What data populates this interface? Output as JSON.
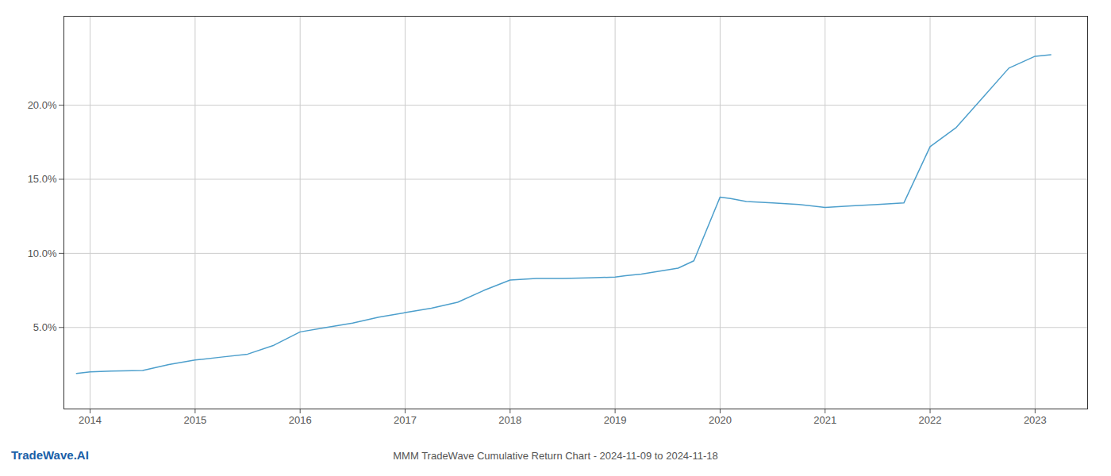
{
  "chart_data": {
    "type": "line",
    "title": "MMM TradeWave Cumulative Return Chart - 2024-11-09 to 2024-11-18",
    "annotations": [
      {
        "text": "TradeWave.AI",
        "color": "#1a5fa8"
      }
    ],
    "color": "#4d9fcc",
    "x": [
      2013.87,
      2014.0,
      2014.2,
      2014.5,
      2014.75,
      2015.0,
      2015.25,
      2015.5,
      2015.75,
      2016.0,
      2016.25,
      2016.5,
      2016.75,
      2017.0,
      2017.25,
      2017.5,
      2017.75,
      2018.0,
      2018.25,
      2018.5,
      2018.75,
      2019.0,
      2019.1,
      2019.25,
      2019.6,
      2019.75,
      2020.0,
      2020.1,
      2020.25,
      2020.5,
      2020.75,
      2021.0,
      2021.25,
      2021.5,
      2021.75,
      2022.0,
      2022.25,
      2022.5,
      2022.75,
      2023.0,
      2023.15
    ],
    "values": [
      1.9,
      2.0,
      2.05,
      2.1,
      2.5,
      2.8,
      3.0,
      3.2,
      3.8,
      4.7,
      5.0,
      5.3,
      5.7,
      6.0,
      6.3,
      6.7,
      7.5,
      8.2,
      8.3,
      8.3,
      8.35,
      8.4,
      8.5,
      8.6,
      9.0,
      9.5,
      13.8,
      13.7,
      13.5,
      13.4,
      13.3,
      13.1,
      13.2,
      13.3,
      13.4,
      17.2,
      18.5,
      20.5,
      22.5,
      23.3,
      23.4
    ],
    "xlim": [
      2013.75,
      2023.5
    ],
    "ylim": [
      -0.5,
      26.0
    ],
    "xticks": [
      2014,
      2015,
      2016,
      2017,
      2018,
      2019,
      2020,
      2021,
      2022,
      2023
    ],
    "yticks": [
      {
        "value": 5.0,
        "label": "5.0%"
      },
      {
        "value": 10.0,
        "label": "10.0%"
      },
      {
        "value": 15.0,
        "label": "15.0%"
      },
      {
        "value": 20.0,
        "label": "20.0%"
      }
    ],
    "grid": true
  }
}
